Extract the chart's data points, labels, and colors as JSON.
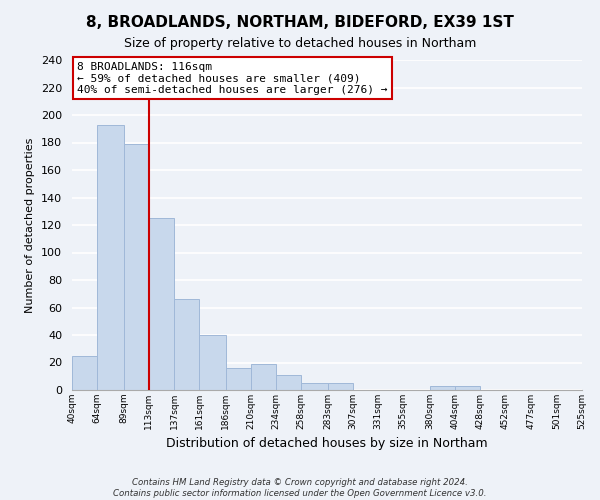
{
  "title": "8, BROADLANDS, NORTHAM, BIDEFORD, EX39 1ST",
  "subtitle": "Size of property relative to detached houses in Northam",
  "xlabel": "Distribution of detached houses by size in Northam",
  "ylabel": "Number of detached properties",
  "bin_edges": [
    40,
    64,
    89,
    113,
    137,
    161,
    186,
    210,
    234,
    258,
    283,
    307,
    331,
    355,
    380,
    404,
    428,
    452,
    477,
    501,
    525
  ],
  "bar_heights": [
    25,
    193,
    179,
    125,
    66,
    40,
    16,
    19,
    11,
    5,
    5,
    0,
    0,
    0,
    3,
    3,
    0,
    0,
    0,
    0
  ],
  "bar_color": "#c8d8ec",
  "bar_edge_color": "#a0b8d8",
  "property_line_x": 113,
  "property_line_color": "#cc0000",
  "annotation_title": "8 BROADLANDS: 116sqm",
  "annotation_line1": "← 59% of detached houses are smaller (409)",
  "annotation_line2": "40% of semi-detached houses are larger (276) →",
  "annotation_box_color": "#ffffff",
  "annotation_box_edge": "#cc0000",
  "tick_labels": [
    "40sqm",
    "64sqm",
    "89sqm",
    "113sqm",
    "137sqm",
    "161sqm",
    "186sqm",
    "210sqm",
    "234sqm",
    "258sqm",
    "283sqm",
    "307sqm",
    "331sqm",
    "355sqm",
    "380sqm",
    "404sqm",
    "428sqm",
    "452sqm",
    "477sqm",
    "501sqm",
    "525sqm"
  ],
  "ylim": [
    0,
    240
  ],
  "yticks": [
    0,
    20,
    40,
    60,
    80,
    100,
    120,
    140,
    160,
    180,
    200,
    220,
    240
  ],
  "footer_line1": "Contains HM Land Registry data © Crown copyright and database right 2024.",
  "footer_line2": "Contains public sector information licensed under the Open Government Licence v3.0.",
  "background_color": "#eef2f8",
  "grid_color": "#ffffff",
  "title_fontsize": 11,
  "subtitle_fontsize": 9
}
